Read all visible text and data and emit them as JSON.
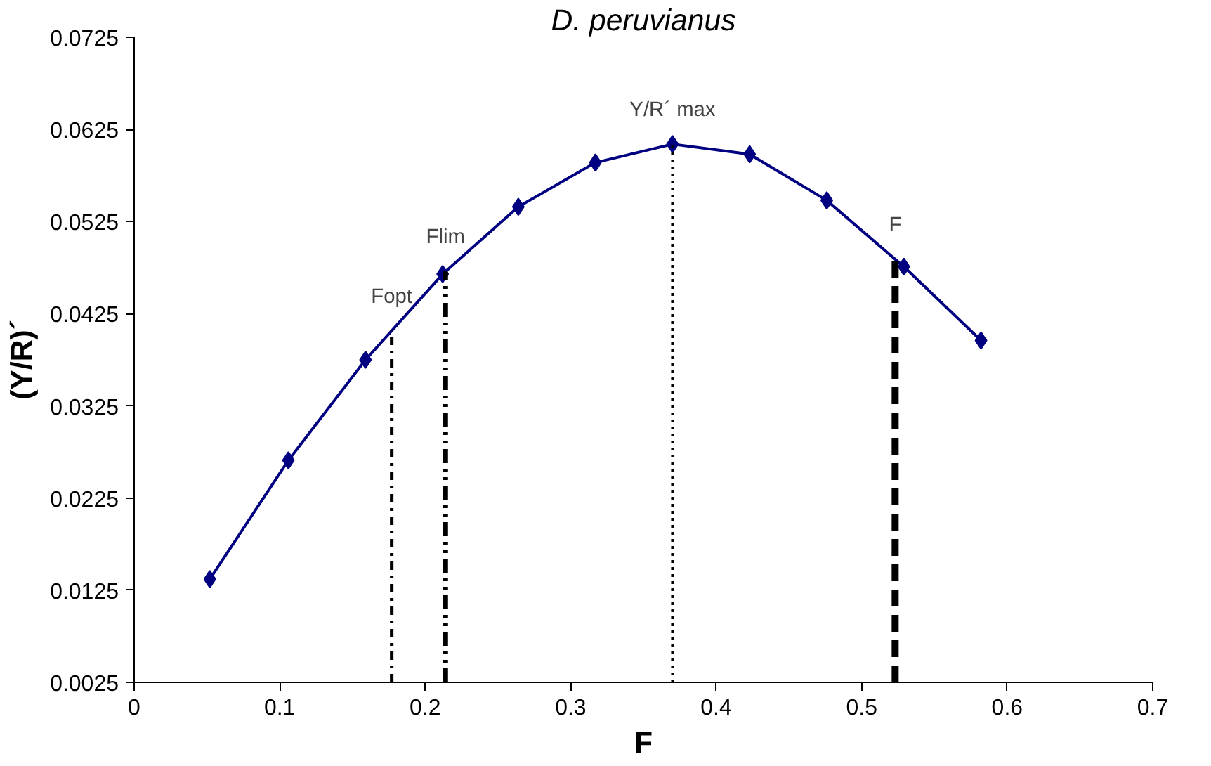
{
  "chart_data": {
    "type": "line",
    "title": "D. peruvianus",
    "xlabel": "F",
    "ylabel": "(Y/R)´",
    "x": [
      0.052,
      0.106,
      0.159,
      0.212,
      0.264,
      0.317,
      0.37,
      0.423,
      0.476,
      0.529,
      0.582
    ],
    "series": [
      {
        "color": "#000080",
        "values": [
          0.0137,
          0.0266,
          0.0375,
          0.0468,
          0.0541,
          0.0589,
          0.0609,
          0.0598,
          0.0548,
          0.0476,
          0.0396
        ]
      }
    ],
    "marker": "diamond",
    "line_style": "solid",
    "grid": false,
    "xlim": [
      0,
      0.7
    ],
    "xticks": [
      0,
      0.1,
      0.2,
      0.3,
      0.4,
      0.5,
      0.6,
      0.7
    ],
    "ylim": [
      0.0025,
      0.0725
    ],
    "yticks": [
      0.0025,
      0.0125,
      0.0225,
      0.0325,
      0.0425,
      0.0525,
      0.0625,
      0.0725
    ],
    "ref_lines": [
      {
        "axis": "x",
        "value": 0.177,
        "label": "Fopt",
        "color": "#000000",
        "line_style": "dashdot"
      },
      {
        "axis": "x",
        "value": 0.214,
        "label": "Flim",
        "color": "#000000",
        "line_style": "dashdotdot"
      },
      {
        "axis": "x",
        "value": 0.37,
        "label": "Y/R´ max",
        "color": "#000000",
        "line_style": "dotted"
      },
      {
        "axis": "x",
        "value": 0.523,
        "label": "F",
        "color": "#000000",
        "line_style": "dashed"
      }
    ]
  }
}
